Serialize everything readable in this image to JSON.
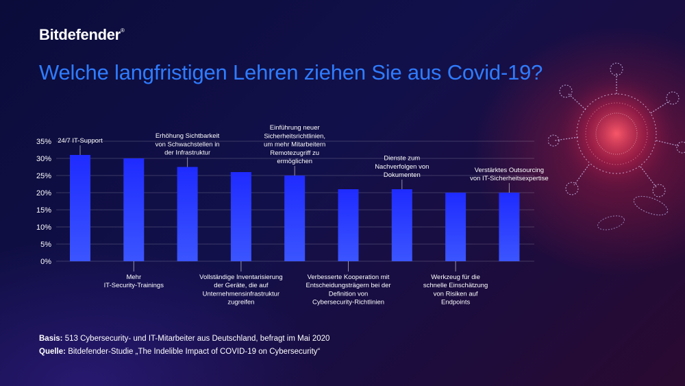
{
  "logo": "Bitdefender",
  "logo_mark": "®",
  "title": "Welche langfristigen Lehren ziehen Sie aus Covid-19?",
  "footer": {
    "basis_label": "Basis:",
    "basis_text": "513 Cybersecurity-  und IT-Mitarbeiter aus Deutschland, befragt im Mai 2020",
    "quelle_label": "Quelle:",
    "quelle_text": "Bitdefender-Studie „The Indelible Impact of COVID-19 on Cybersecurity“"
  },
  "colors": {
    "bar_top": "#1f2bff",
    "bar_bottom": "#3b55ff",
    "title": "#2f7cff",
    "accent_virus": "#e0304a"
  },
  "chart_data": {
    "type": "bar",
    "ylim": [
      0,
      35
    ],
    "yticks": [
      "0%",
      "5%",
      "10%",
      "15%",
      "20%",
      "25%",
      "30%",
      "35%"
    ],
    "grid": true,
    "categories": [
      "24/7 IT-Support",
      "Mehr IT-Security-Trainings",
      "Erhöhung Sichtbarkeit von Schwachstellen in der Infrastruktur",
      "Vollständige Inventarisierung der Geräte, die auf Unternehmensinfrastruktur zugreifen",
      "Einführung neuer Sicherheitsrichtlinien, um mehr Mitarbeitern Remotezugriff zu ermöglichen",
      "Verbesserte Kooperation mit Entscheidungsträgern bei der Definition von Cybersecurity-Richtlinien",
      "Dienste zum Nachverfolgen von Dokumenten",
      "Werkzeug für die schnelle Einschätzung von Risiken auf Endpoints",
      "Verstärktes Outsourcing von IT-Sicherheitsexpertise"
    ],
    "values": [
      31,
      30,
      27.5,
      26,
      25,
      21,
      21,
      20,
      20
    ],
    "annotations": [
      {
        "lines": [
          "24/7 IT-Support"
        ],
        "position": "above"
      },
      {
        "lines": [
          "Mehr",
          "IT-Security-Trainings"
        ],
        "position": "below"
      },
      {
        "lines": [
          "Erhöhung Sichtbarkeit",
          "von Schwachstellen in",
          "der Infrastruktur"
        ],
        "position": "above"
      },
      {
        "lines": [
          "Vollständige Inventarisierung",
          "der Geräte, die auf",
          "Unternehmensinfrastruktur",
          "zugreifen"
        ],
        "position": "below"
      },
      {
        "lines": [
          "Einführung neuer",
          "Sicherheitsrichtlinien,",
          "um mehr Mitarbeitern",
          "Remotezugriff zu",
          "ermöglichen"
        ],
        "position": "above"
      },
      {
        "lines": [
          "Verbesserte Kooperation mit",
          "Entscheidungsträgern bei der",
          "Definition von",
          "Cybersecurity-Richtlinien"
        ],
        "position": "below"
      },
      {
        "lines": [
          "Dienste zum",
          "Nachverfolgen von",
          "Dokumenten"
        ],
        "position": "above"
      },
      {
        "lines": [
          "Werkzeug für die",
          "schnelle Einschätzung",
          "von Risiken auf",
          "Endpoints"
        ],
        "position": "below"
      },
      {
        "lines": [
          "Verstärktes Outsourcing",
          "von IT-Sicherheitsexpertise"
        ],
        "position": "above"
      }
    ]
  }
}
